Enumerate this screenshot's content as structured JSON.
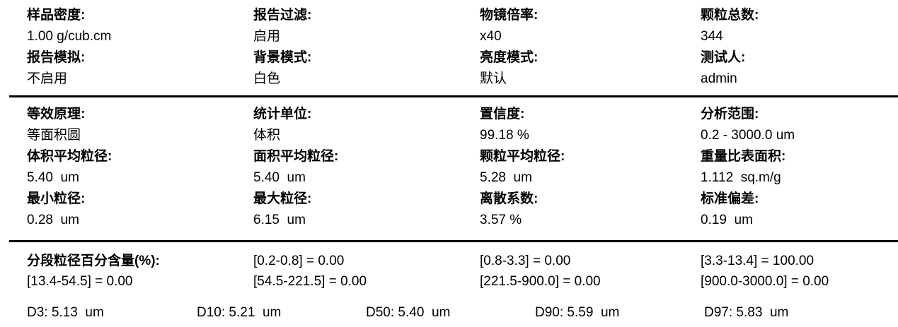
{
  "colors": {
    "text": "#000000",
    "rule": "#000000",
    "background": "#ffffff"
  },
  "sample_info": {
    "rows": [
      [
        {
          "label": "样品密度:",
          "value": "1.00 g/cub.cm"
        },
        {
          "label": "报告过滤:",
          "value": "启用"
        },
        {
          "label": "物镜倍率:",
          "value": "x40"
        },
        {
          "label": "颗粒总数:",
          "value": "344"
        }
      ],
      [
        {
          "label": "报告模拟:",
          "value": "不启用"
        },
        {
          "label": "背景模式:",
          "value": "白色"
        },
        {
          "label": "亮度模式:",
          "value": "默认"
        },
        {
          "label": "测试人:",
          "value": "admin"
        }
      ]
    ]
  },
  "analysis_results": {
    "rows": [
      [
        {
          "label": "等效原理:",
          "value": "等面积圆"
        },
        {
          "label": "统计单位:",
          "value": "体积"
        },
        {
          "label": "置信度:",
          "value": "99.18 %"
        },
        {
          "label": "分析范围:",
          "value": "0.2 - 3000.0 um"
        }
      ],
      [
        {
          "label": "体积平均粒径:",
          "value": "5.40  um"
        },
        {
          "label": "面积平均粒径:",
          "value": "5.40  um"
        },
        {
          "label": "颗粒平均粒径:",
          "value": "5.28  um"
        },
        {
          "label": "重量比表面积:",
          "value": "1.112  sq.m/g"
        }
      ],
      [
        {
          "label": "最小粒径:",
          "value": "0.28  um"
        },
        {
          "label": "最大粒径:",
          "value": "6.15  um"
        },
        {
          "label": "离散系数:",
          "value": "3.57 %"
        },
        {
          "label": "标准偏差:",
          "value": "0.19  um"
        }
      ]
    ]
  },
  "size_distribution": {
    "fraction_title": "分段粒径百分含量(%):",
    "fraction_row1": [
      "[0.2-0.8] = 0.00",
      "[0.8-3.3] = 0.00",
      "[3.3-13.4] = 100.00"
    ],
    "fraction_row2": [
      "[13.4-54.5] = 0.00",
      "[54.5-221.5] = 0.00",
      "[221.5-900.0] = 0.00",
      "[900.0-3000.0] = 0.00"
    ],
    "percentiles": [
      "D3: 5.13  um",
      "D10: 5.21  um",
      "D50: 5.40  um",
      "D90: 5.59  um",
      "D97: 5.83  um"
    ]
  }
}
